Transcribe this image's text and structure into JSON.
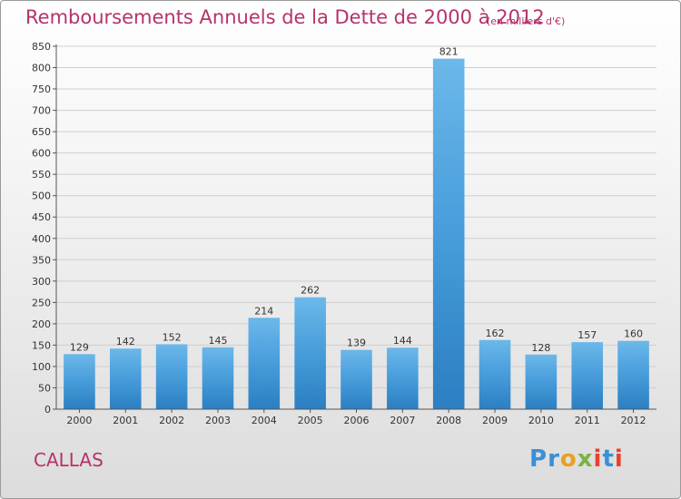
{
  "chart_data": {
    "type": "bar",
    "title": "Remboursements Annuels de la Dette de 2000 à 2012",
    "unit_note": "(en milliers d'€)",
    "categories": [
      "2000",
      "2001",
      "2002",
      "2003",
      "2004",
      "2005",
      "2006",
      "2007",
      "2008",
      "2009",
      "2010",
      "2011",
      "2012"
    ],
    "values": [
      129,
      142,
      152,
      145,
      214,
      262,
      139,
      144,
      821,
      162,
      128,
      157,
      160
    ],
    "ylim": [
      0,
      850
    ],
    "ytick_step": 50,
    "grid": true,
    "bar_color": "#4a9fdc",
    "bar_color_light": "#6cb8ea",
    "bar_color_dark": "#2b7fc2"
  },
  "place": "CALLAS",
  "brand": "Proxiti"
}
